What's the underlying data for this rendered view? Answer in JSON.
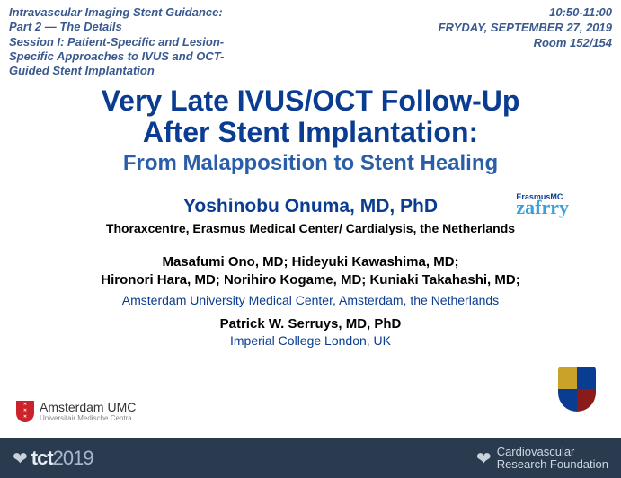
{
  "header": {
    "session_line1": "Intravascular Imaging Stent Guidance:",
    "session_line2": "Part 2 — The Details",
    "session_line3": "Session I: Patient-Specific and Lesion-",
    "session_line4": "Specific Approaches to IVUS and OCT-",
    "session_line5": "Guided Stent Implantation",
    "time": "10:50-11:00",
    "date": "FRYDAY, SEPTEMBER 27, 2019",
    "room": "Room 152/154"
  },
  "title": {
    "line1": "Very Late IVUS/OCT Follow-Up",
    "line2": "After Stent Implantation:",
    "subtitle": "From Malapposition to Stent Healing"
  },
  "presenter_primary": {
    "name": "Yoshinobu Onuma, MD, PhD",
    "affiliation": "Thoraxcentre, Erasmus Medical Center/ Cardialysis, the Netherlands"
  },
  "erasmus": {
    "top": "ErasmusMC",
    "script": "zafrry"
  },
  "coauthors": {
    "line1": "Masafumi Ono, MD; Hideyuki Kawashima, MD;",
    "line2": "Hironori Hara, MD; Norihiro Kogame, MD; Kuniaki Takahashi, MD;",
    "affiliation": "Amsterdam University Medical Center, Amsterdam, the Netherlands"
  },
  "presenter_tertiary": {
    "name": "Patrick W. Serruys, MD, PhD",
    "affiliation": "Imperial College London, UK"
  },
  "amsterdam_logo": {
    "line1": "Amsterdam UMC",
    "line2": "Universitair Medische Centra"
  },
  "footer": {
    "brand": "tct",
    "year": "2019",
    "crf_line1": "Cardiovascular",
    "crf_line2": "Research Foundation"
  },
  "colors": {
    "title_color": "#0a3d91",
    "subtitle_color": "#2b5ea8",
    "header_italic_color": "#3a5a8f",
    "footer_bg": "#2a3b50",
    "erasmus_script": "#3aa0d9",
    "ams_shield": "#cc2229"
  }
}
